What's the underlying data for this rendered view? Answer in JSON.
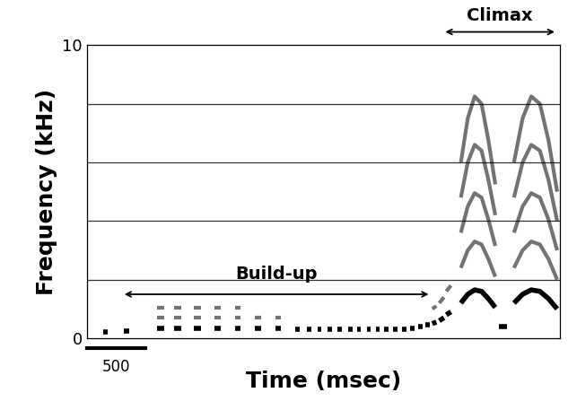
{
  "chart_data": {
    "type": "spectrogram",
    "x_label": "Time (msec)",
    "y_label": "Frequency (kHz)",
    "xlim": [
      0,
      4050
    ],
    "ylim": [
      0,
      10
    ],
    "yticks": [
      0,
      10
    ],
    "tick_labels": "y",
    "frequency_lines": [
      2,
      4,
      6,
      8
    ],
    "scale_bar": 500,
    "color": "#000000",
    "syllables": [
      {
        "start": 140,
        "end": 180,
        "f0": [
          0.2,
          0.2
        ],
        "harmonics": 1
      },
      {
        "start": 320,
        "end": 360,
        "f0": [
          0.25,
          0.25
        ],
        "harmonics": 1
      },
      {
        "start": 600,
        "end": 660,
        "f0": [
          0.35,
          0.35
        ],
        "harmonics": 3
      },
      {
        "start": 750,
        "end": 810,
        "f0": [
          0.35,
          0.35
        ],
        "harmonics": 3
      },
      {
        "start": 920,
        "end": 975,
        "f0": [
          0.35,
          0.35
        ],
        "harmonics": 3
      },
      {
        "start": 1095,
        "end": 1150,
        "f0": [
          0.35,
          0.35
        ],
        "harmonics": 3
      },
      {
        "start": 1270,
        "end": 1320,
        "f0": [
          0.35,
          0.35
        ],
        "harmonics": 3
      },
      {
        "start": 1440,
        "end": 1490,
        "f0": [
          0.35,
          0.35
        ],
        "harmonics": 2
      },
      {
        "start": 1615,
        "end": 1660,
        "f0": [
          0.35,
          0.35
        ],
        "harmonics": 2
      },
      {
        "start": 1785,
        "end": 1825,
        "f0": [
          0.3,
          0.3
        ],
        "harmonics": 1
      },
      {
        "start": 1885,
        "end": 1920,
        "f0": [
          0.3,
          0.3
        ],
        "harmonics": 1
      },
      {
        "start": 1975,
        "end": 2010,
        "f0": [
          0.3,
          0.3
        ],
        "harmonics": 1
      },
      {
        "start": 2065,
        "end": 2100,
        "f0": [
          0.3,
          0.3
        ],
        "harmonics": 1
      },
      {
        "start": 2150,
        "end": 2185,
        "f0": [
          0.3,
          0.3
        ],
        "harmonics": 1
      },
      {
        "start": 2240,
        "end": 2275,
        "f0": [
          0.3,
          0.3
        ],
        "harmonics": 1
      },
      {
        "start": 2315,
        "end": 2350,
        "f0": [
          0.3,
          0.3
        ],
        "harmonics": 1
      },
      {
        "start": 2400,
        "end": 2435,
        "f0": [
          0.3,
          0.3
        ],
        "harmonics": 1
      },
      {
        "start": 2475,
        "end": 2510,
        "f0": [
          0.3,
          0.3
        ],
        "harmonics": 1
      },
      {
        "start": 2550,
        "end": 2585,
        "f0": [
          0.3,
          0.3
        ],
        "harmonics": 1
      },
      {
        "start": 2625,
        "end": 2660,
        "f0": [
          0.3,
          0.3
        ],
        "harmonics": 1
      },
      {
        "start": 2700,
        "end": 2735,
        "f0": [
          0.3,
          0.3
        ],
        "harmonics": 1
      },
      {
        "start": 2770,
        "end": 2805,
        "f0": [
          0.35,
          0.35
        ],
        "harmonics": 1
      },
      {
        "start": 2840,
        "end": 2875,
        "f0": [
          0.4,
          0.4
        ],
        "harmonics": 1
      },
      {
        "start": 2900,
        "end": 2935,
        "f0": [
          0.45,
          0.45
        ],
        "harmonics": 1
      },
      {
        "start": 2960,
        "end": 2995,
        "f0": [
          0.5,
          0.55
        ],
        "harmonics": 2
      },
      {
        "start": 3020,
        "end": 3060,
        "f0": [
          0.6,
          0.7
        ],
        "harmonics": 2
      },
      {
        "start": 3080,
        "end": 3120,
        "f0": [
          0.8,
          0.9
        ],
        "harmonics": 2
      },
      {
        "start": 3205,
        "end": 3500,
        "f0": [
          1.2,
          1.5,
          1.65,
          1.6,
          1.35,
          1.05
        ],
        "harmonics": 5
      },
      {
        "start": 3530,
        "end": 3600,
        "f0": [
          0.4,
          0.4
        ],
        "harmonics": 1
      },
      {
        "start": 3660,
        "end": 4030,
        "f0": [
          1.2,
          1.5,
          1.65,
          1.6,
          1.35,
          1.0
        ],
        "harmonics": 5
      }
    ],
    "annotations": [
      {
        "text": "Build-up",
        "start": 300,
        "end": 2950
      },
      {
        "text": "Climax",
        "start": 3050,
        "end": 4030
      }
    ]
  }
}
